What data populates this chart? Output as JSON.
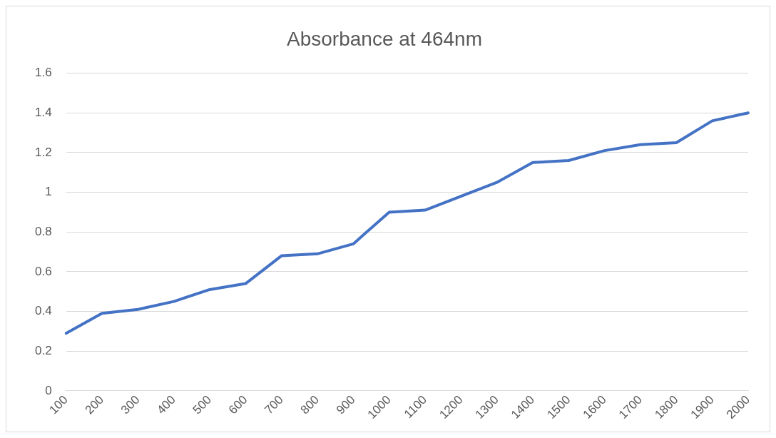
{
  "chart_data": {
    "type": "line",
    "title": "Absorbance at 464nm",
    "categories": [
      "100",
      "200",
      "300",
      "400",
      "500",
      "600",
      "700",
      "800",
      "900",
      "1000",
      "1100",
      "1200",
      "1300",
      "1400",
      "1500",
      "1600",
      "1700",
      "1800",
      "1900",
      "2000"
    ],
    "series": [
      {
        "color": "#4472c4",
        "values": [
          0.29,
          0.39,
          0.41,
          0.45,
          0.51,
          0.54,
          0.68,
          0.69,
          0.74,
          0.9,
          0.91,
          0.98,
          1.05,
          1.15,
          1.16,
          1.21,
          1.24,
          1.25,
          1.36,
          1.4
        ]
      }
    ],
    "ylim": [
      0,
      1.6
    ],
    "yticks": [
      0,
      0.2,
      0.4,
      0.6,
      0.8,
      1,
      1.2,
      1.4,
      1.6
    ],
    "grid": "y",
    "legend": false,
    "marker": "none",
    "line_style": "solid"
  }
}
